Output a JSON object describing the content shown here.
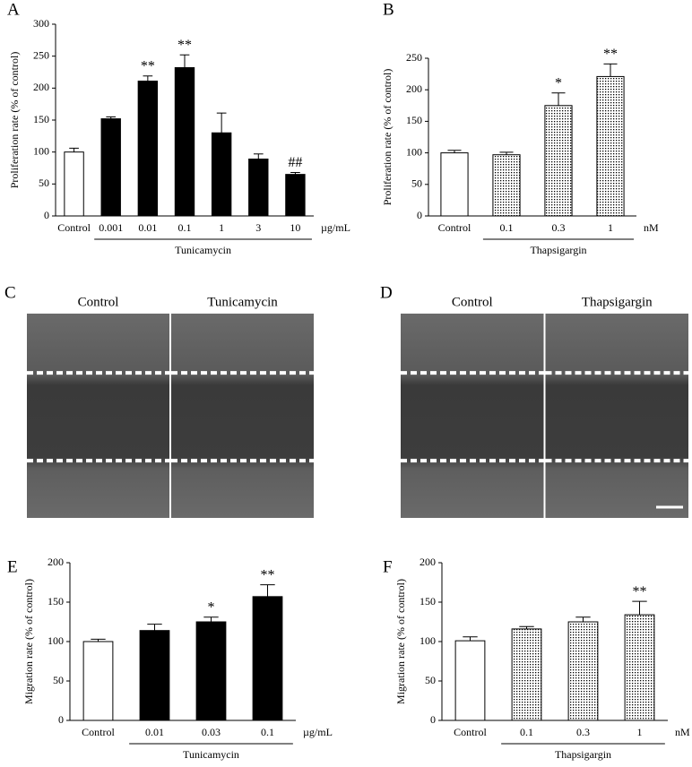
{
  "chart_data": [
    {
      "type": "bar",
      "panel": "A",
      "ylabel": "Proliferation rate (% of control)",
      "categories": [
        "Control",
        "0.001",
        "0.01",
        "0.1",
        "1",
        "3",
        "10"
      ],
      "values": [
        100,
        152,
        211,
        232,
        130,
        89,
        65
      ],
      "errors": [
        6,
        3,
        8,
        20,
        31,
        8,
        3
      ],
      "annotations": [
        null,
        null,
        "**",
        "**",
        null,
        null,
        "##"
      ],
      "fills": [
        "white",
        "black",
        "black",
        "black",
        "black",
        "black",
        "black"
      ],
      "unit": "µg/mL",
      "group": "Tunicamycin",
      "ylim": [
        0,
        300
      ],
      "yticks": [
        0,
        50,
        100,
        150,
        200,
        250,
        300
      ]
    },
    {
      "type": "bar",
      "panel": "B",
      "ylabel": "Proliferation rate (% of control)",
      "categories": [
        "Control",
        "0.1",
        "0.3",
        "1"
      ],
      "values": [
        100,
        97,
        175,
        221
      ],
      "errors": [
        4,
        4,
        20,
        20
      ],
      "annotations": [
        null,
        null,
        "*",
        "**"
      ],
      "fills": [
        "white",
        "dots",
        "dots",
        "dots"
      ],
      "unit": "nM",
      "group": "Thapsigargin",
      "ylim": [
        0,
        250
      ],
      "yticks": [
        0,
        50,
        100,
        150,
        200,
        250
      ]
    },
    {
      "type": "bar",
      "panel": "E",
      "ylabel": "Migration rate (% of control)",
      "categories": [
        "Control",
        "0.01",
        "0.03",
        "0.1"
      ],
      "values": [
        100,
        114,
        125,
        157
      ],
      "errors": [
        3,
        8,
        6,
        15
      ],
      "annotations": [
        null,
        null,
        "*",
        "**"
      ],
      "fills": [
        "white",
        "black",
        "black",
        "black"
      ],
      "unit": "µg/mL",
      "group": "Tunicamycin",
      "ylim": [
        0,
        200
      ],
      "yticks": [
        0,
        50,
        100,
        150,
        200
      ]
    },
    {
      "type": "bar",
      "panel": "F",
      "ylabel": "Migration rate (% of control)",
      "categories": [
        "Control",
        "0.1",
        "0.3",
        "1"
      ],
      "values": [
        101,
        116,
        125,
        134
      ],
      "errors": [
        5,
        3,
        6,
        17
      ],
      "annotations": [
        null,
        null,
        null,
        "**"
      ],
      "fills": [
        "white",
        "dots",
        "dots",
        "dots"
      ],
      "unit": "nM",
      "group": "Thapsigargin",
      "ylim": [
        0,
        200
      ],
      "yticks": [
        0,
        50,
        100,
        150,
        200
      ]
    }
  ],
  "images": [
    {
      "panel": "C",
      "labels": [
        "Control",
        "Tunicamycin"
      ]
    },
    {
      "panel": "D",
      "labels": [
        "Control",
        "Thapsigargin"
      ]
    }
  ]
}
